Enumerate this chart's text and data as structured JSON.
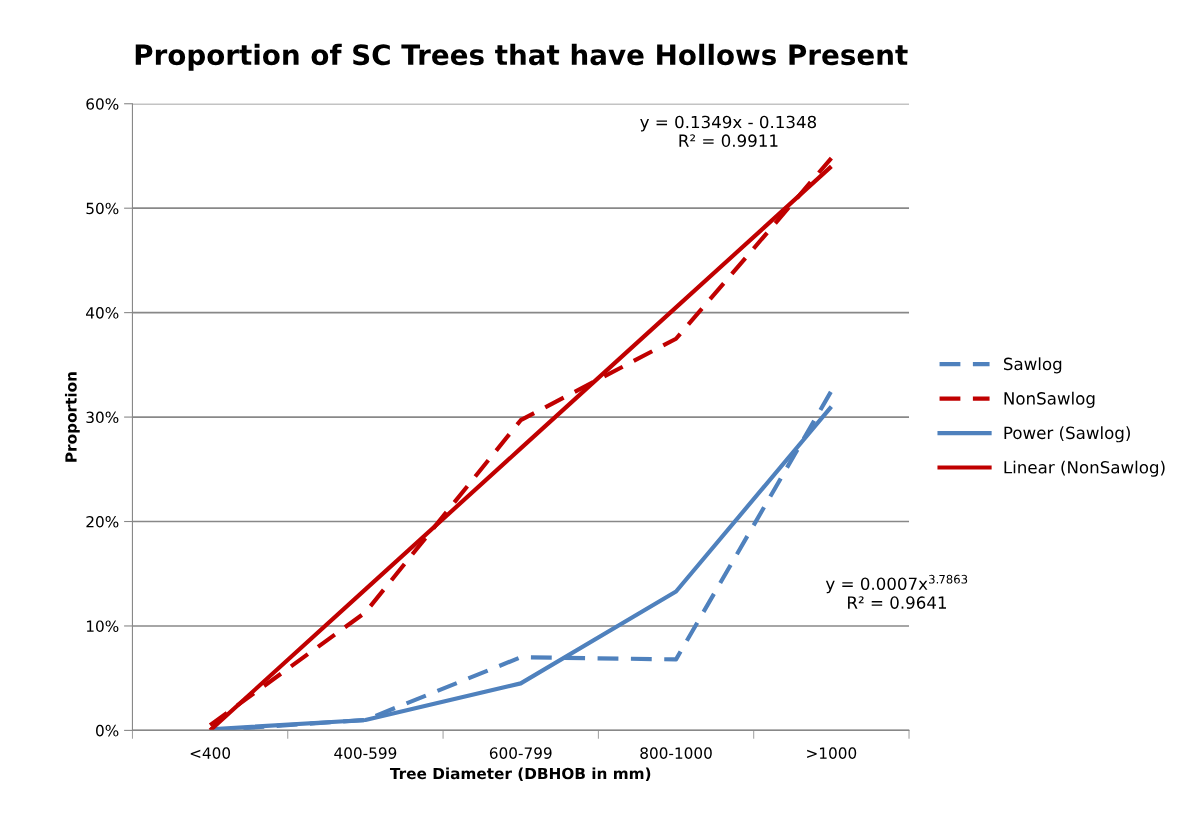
{
  "chart_data": {
    "type": "line",
    "title": "Proportion of SC Trees that have Hollows Present",
    "xlabel": "Tree Diameter (DBHOB in mm)",
    "ylabel": "Proportion",
    "categories": [
      "<400",
      "400-599",
      "600-799",
      "800-1000",
      ">1000"
    ],
    "series": [
      {
        "name": "Sawlog",
        "color": "#4f81bd",
        "line_style": "dashed",
        "values": [
          0,
          1.0,
          7.0,
          6.8,
          32.5
        ]
      },
      {
        "name": "NonSawlog",
        "color": "#c00000",
        "line_style": "dashed",
        "values": [
          0.5,
          11.3,
          29.7,
          37.5,
          54.8
        ]
      },
      {
        "name": "Power (Sawlog)",
        "color": "#4f81bd",
        "line_style": "solid",
        "values": [
          0.1,
          1.0,
          4.5,
          13.3,
          31.0
        ]
      },
      {
        "name": "Linear (NonSawlog)",
        "color": "#c00000",
        "line_style": "solid",
        "values": [
          0,
          13.5,
          27.0,
          40.5,
          54.0
        ]
      }
    ],
    "ylim": [
      0,
      60
    ],
    "yticks": [
      {
        "value": 0,
        "label": "0%"
      },
      {
        "value": 10,
        "label": "10%"
      },
      {
        "value": 20,
        "label": "20%"
      },
      {
        "value": 30,
        "label": "30%"
      },
      {
        "value": 40,
        "label": "40%"
      },
      {
        "value": 50,
        "label": "50%"
      },
      {
        "value": 60,
        "label": "60%"
      }
    ],
    "grid": "y",
    "legend": "right",
    "marker": "none",
    "annotations": [
      "y = 0.1349x - 0.1348\nR² = 0.9911",
      "y = 0.0007x$^{3.7863}$\nR² = 0.9641"
    ]
  }
}
